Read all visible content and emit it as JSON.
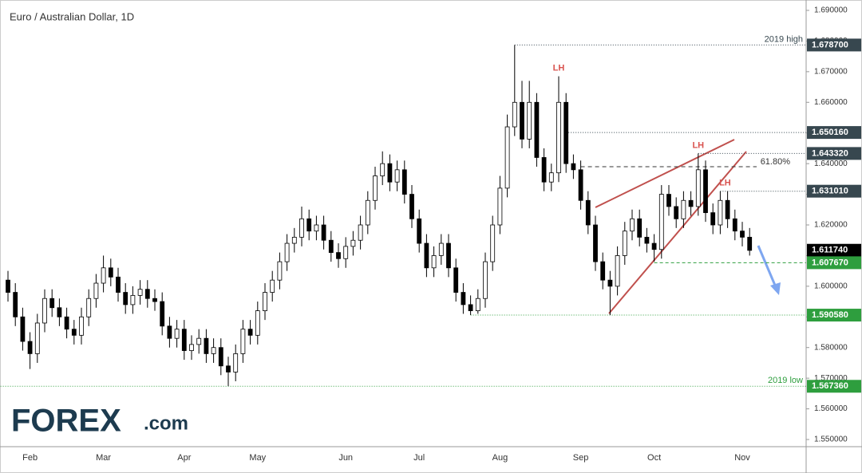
{
  "chart_data": {
    "type": "candlestick",
    "title": "Euro / Australian Dollar, 1D",
    "ylim": [
      1.55,
      1.69
    ],
    "yticks": [
      {
        "value": 1.55,
        "label": "1.550000"
      },
      {
        "value": 1.56,
        "label": "1.560000"
      },
      {
        "value": 1.57,
        "label": "1.570000"
      },
      {
        "value": 1.58,
        "label": "1.580000"
      },
      {
        "value": 1.59,
        "label": "1.590000"
      },
      {
        "value": 1.6,
        "label": "1.600000"
      },
      {
        "value": 1.61,
        "label": "1.610000"
      },
      {
        "value": 1.62,
        "label": "1.620000"
      },
      {
        "value": 1.63,
        "label": "1.630000"
      },
      {
        "value": 1.64,
        "label": "1.640000"
      },
      {
        "value": 1.65,
        "label": "1.650000"
      },
      {
        "value": 1.66,
        "label": "1.660000"
      },
      {
        "value": 1.67,
        "label": "1.670000"
      },
      {
        "value": 1.68,
        "label": "1.680000"
      },
      {
        "value": 1.69,
        "label": "1.690000"
      }
    ],
    "categories": [
      null,
      null,
      null,
      "Feb",
      null,
      null,
      null,
      null,
      null,
      null,
      null,
      null,
      null,
      "Mar",
      null,
      null,
      null,
      null,
      null,
      null,
      null,
      null,
      null,
      null,
      "Apr",
      null,
      null,
      null,
      null,
      null,
      null,
      null,
      null,
      null,
      "May",
      null,
      null,
      null,
      null,
      null,
      null,
      null,
      null,
      null,
      null,
      null,
      "Jun",
      null,
      null,
      null,
      null,
      null,
      null,
      null,
      null,
      null,
      "Jul",
      null,
      null,
      null,
      null,
      null,
      null,
      null,
      null,
      null,
      null,
      "Aug",
      null,
      null,
      null,
      null,
      null,
      null,
      null,
      null,
      null,
      null,
      "Sep",
      null,
      null,
      null,
      null,
      null,
      null,
      null,
      null,
      null,
      "Oct",
      null,
      null,
      null,
      null,
      null,
      null,
      null,
      null,
      null,
      null,
      null,
      "Nov",
      null
    ],
    "open": [
      1.602,
      1.598,
      1.59,
      1.582,
      1.578,
      1.588,
      1.596,
      1.593,
      1.59,
      1.586,
      1.584,
      1.59,
      1.596,
      1.601,
      1.606,
      1.603,
      1.598,
      1.594,
      1.597,
      1.599,
      1.596,
      1.595,
      1.587,
      1.583,
      1.586,
      1.579,
      1.581,
      1.583,
      1.578,
      1.58,
      1.574,
      1.572,
      1.578,
      1.586,
      1.584,
      1.592,
      1.598,
      1.602,
      1.608,
      1.614,
      1.616,
      1.622,
      1.618,
      1.62,
      1.615,
      1.611,
      1.609,
      1.613,
      1.615,
      1.62,
      1.628,
      1.636,
      1.64,
      1.634,
      1.638,
      1.63,
      1.622,
      1.614,
      1.606,
      1.61,
      1.614,
      1.606,
      1.598,
      1.594,
      1.592,
      1.596,
      1.608,
      1.62,
      1.632,
      1.652,
      1.66,
      1.648,
      1.66,
      1.642,
      1.634,
      1.637,
      1.66,
      1.64,
      1.638,
      1.628,
      1.62,
      1.608,
      1.602,
      1.6,
      1.61,
      1.618,
      1.622,
      1.616,
      1.614,
      1.612,
      1.63,
      1.626,
      1.622,
      1.628,
      1.626,
      1.638,
      1.624,
      1.62,
      1.628,
      1.622,
      1.618,
      1.616
    ],
    "high": [
      1.605,
      1.601,
      1.593,
      1.585,
      1.591,
      1.599,
      1.599,
      1.596,
      1.593,
      1.589,
      1.593,
      1.599,
      1.604,
      1.61,
      1.609,
      1.606,
      1.601,
      1.6,
      1.602,
      1.602,
      1.599,
      1.598,
      1.59,
      1.589,
      1.589,
      1.584,
      1.586,
      1.586,
      1.583,
      1.583,
      1.577,
      1.581,
      1.589,
      1.589,
      1.595,
      1.601,
      1.605,
      1.611,
      1.617,
      1.619,
      1.626,
      1.625,
      1.623,
      1.623,
      1.618,
      1.614,
      1.616,
      1.618,
      1.623,
      1.631,
      1.639,
      1.644,
      1.643,
      1.641,
      1.641,
      1.633,
      1.625,
      1.617,
      1.613,
      1.617,
      1.617,
      1.609,
      1.601,
      1.597,
      1.599,
      1.611,
      1.623,
      1.636,
      1.656,
      1.6787,
      1.667,
      1.667,
      1.663,
      1.645,
      1.64,
      1.6685,
      1.663,
      1.643,
      1.641,
      1.631,
      1.623,
      1.611,
      1.605,
      1.613,
      1.621,
      1.625,
      1.625,
      1.619,
      1.617,
      1.633,
      1.633,
      1.629,
      1.631,
      1.631,
      1.6433,
      1.641,
      1.627,
      1.631,
      1.631,
      1.625,
      1.621,
      1.619
    ],
    "low": [
      1.595,
      1.587,
      1.579,
      1.573,
      1.575,
      1.585,
      1.59,
      1.587,
      1.583,
      1.581,
      1.581,
      1.587,
      1.593,
      1.598,
      1.6,
      1.595,
      1.591,
      1.591,
      1.594,
      1.593,
      1.592,
      1.584,
      1.58,
      1.58,
      1.576,
      1.576,
      1.578,
      1.575,
      1.575,
      1.571,
      1.5674,
      1.569,
      1.575,
      1.581,
      1.581,
      1.589,
      1.595,
      1.599,
      1.605,
      1.611,
      1.613,
      1.615,
      1.615,
      1.612,
      1.608,
      1.606,
      1.606,
      1.61,
      1.612,
      1.617,
      1.625,
      1.633,
      1.631,
      1.631,
      1.627,
      1.619,
      1.611,
      1.603,
      1.603,
      1.607,
      1.603,
      1.595,
      1.591,
      1.5906,
      1.591,
      1.593,
      1.605,
      1.617,
      1.629,
      1.649,
      1.645,
      1.645,
      1.639,
      1.631,
      1.631,
      1.634,
      1.637,
      1.635,
      1.625,
      1.617,
      1.605,
      1.599,
      1.5906,
      1.597,
      1.607,
      1.615,
      1.613,
      1.611,
      1.608,
      1.609,
      1.623,
      1.619,
      1.619,
      1.623,
      1.623,
      1.621,
      1.617,
      1.617,
      1.619,
      1.615,
      1.613,
      1.61
    ],
    "close": [
      1.598,
      1.59,
      1.582,
      1.578,
      1.588,
      1.596,
      1.593,
      1.59,
      1.586,
      1.584,
      1.59,
      1.596,
      1.601,
      1.606,
      1.603,
      1.598,
      1.594,
      1.597,
      1.599,
      1.596,
      1.595,
      1.587,
      1.583,
      1.586,
      1.579,
      1.581,
      1.583,
      1.578,
      1.58,
      1.574,
      1.572,
      1.578,
      1.586,
      1.584,
      1.592,
      1.598,
      1.602,
      1.608,
      1.614,
      1.616,
      1.622,
      1.618,
      1.62,
      1.615,
      1.611,
      1.609,
      1.613,
      1.615,
      1.62,
      1.628,
      1.636,
      1.64,
      1.634,
      1.638,
      1.63,
      1.622,
      1.614,
      1.606,
      1.61,
      1.614,
      1.606,
      1.598,
      1.594,
      1.592,
      1.596,
      1.608,
      1.62,
      1.632,
      1.652,
      1.66,
      1.648,
      1.66,
      1.642,
      1.634,
      1.637,
      1.66,
      1.64,
      1.638,
      1.628,
      1.62,
      1.608,
      1.602,
      1.6,
      1.61,
      1.618,
      1.622,
      1.616,
      1.614,
      1.612,
      1.63,
      1.626,
      1.622,
      1.628,
      1.626,
      1.638,
      1.624,
      1.62,
      1.628,
      1.622,
      1.618,
      1.616,
      1.6117
    ],
    "up_color": "#ffffff",
    "down_color": "#000000",
    "levels": [
      {
        "value": 1.6787,
        "label": "1.678700",
        "note": "2019 high",
        "color": "#37474f",
        "style": "dotted"
      },
      {
        "value": 1.65016,
        "label": "1.650160",
        "color": "#37474f",
        "style": "dotted"
      },
      {
        "value": 1.64332,
        "label": "1.643320",
        "color": "#37474f",
        "style": "dotted"
      },
      {
        "value": 1.63101,
        "label": "1.631010",
        "color": "#37474f",
        "style": "dotted"
      },
      {
        "value": 1.61174,
        "label": "1.611740",
        "color": "#000000",
        "style": "none"
      },
      {
        "value": 1.60767,
        "label": "1.607670",
        "color": "#2e9e3e",
        "style": "dashed"
      },
      {
        "value": 1.59058,
        "label": "1.590580",
        "color": "#2e9e3e",
        "style": "dotted"
      },
      {
        "value": 1.56736,
        "label": "1.567360",
        "note": "2019 low",
        "color": "#2e9e3e",
        "style": "dotted"
      }
    ],
    "fib": {
      "value": 1.639,
      "label": "61.80%"
    },
    "annotations": [
      {
        "text": "LH",
        "color": "#d9534f"
      },
      {
        "text": "LH",
        "color": "#d9534f"
      },
      {
        "text": "LH",
        "color": "#d9534f"
      }
    ],
    "logo": {
      "name": "FOREX",
      "suffix": ".com"
    }
  }
}
